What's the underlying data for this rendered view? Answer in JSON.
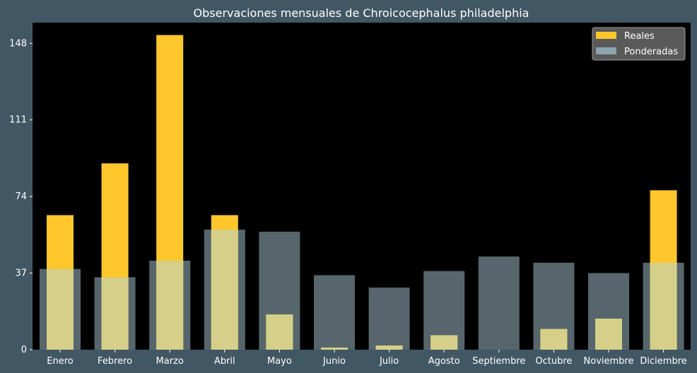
{
  "figure": {
    "background_color": "#425764",
    "plot_background_color": "#000000"
  },
  "chart_data": {
    "type": "bar",
    "title": "Observaciones mensuales de Chroicocephalus philadelphia",
    "xlabel": "",
    "ylabel": "",
    "categories": [
      "Enero",
      "Febrero",
      "Marzo",
      "Abril",
      "Mayo",
      "Junio",
      "Julio",
      "Agosto",
      "Septiembre",
      "Octubre",
      "Noviembre",
      "Diciembre"
    ],
    "series": [
      {
        "name": "Reales",
        "color": "#ffc72c",
        "values": [
          65,
          90,
          152,
          65,
          17,
          1,
          2,
          7,
          0,
          10,
          15,
          77
        ]
      },
      {
        "name": "Ponderadas",
        "color": "#8ba4ae",
        "values": [
          39,
          35,
          43,
          58,
          57,
          36,
          30,
          38,
          45,
          42,
          37,
          42
        ]
      }
    ],
    "overlap_color": "#d5cf89",
    "yticks": [
      0,
      37,
      74,
      111,
      148
    ],
    "ylim": [
      0,
      158
    ],
    "grid": false,
    "legend_position": "top-right"
  }
}
